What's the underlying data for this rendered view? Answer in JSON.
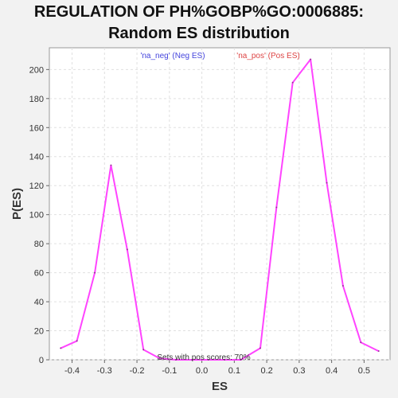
{
  "chart_data": {
    "type": "line",
    "title_line1": "REGULATION OF PH%GOBP%GO:0006885:",
    "title_line2": "Random ES distribution",
    "xlabel": "ES",
    "ylabel": "P(ES)",
    "xlim": [
      -0.47,
      0.58
    ],
    "ylim": [
      0,
      215
    ],
    "x_ticks": [
      -0.4,
      -0.3,
      -0.2,
      -0.1,
      0.0,
      0.1,
      0.2,
      0.3,
      0.4,
      0.5
    ],
    "x_tick_labels": [
      "-0.4",
      "-0.3",
      "-0.2",
      "-0.1",
      "0.0",
      "0.1",
      "0.2",
      "0.3",
      "0.4",
      "0.5"
    ],
    "y_ticks": [
      0,
      20,
      40,
      60,
      80,
      100,
      120,
      140,
      160,
      180,
      200
    ],
    "y_tick_labels": [
      "0",
      "20",
      "40",
      "60",
      "80",
      "100",
      "120",
      "140",
      "160",
      "180",
      "200"
    ],
    "grid": true,
    "series": [
      {
        "color": "#ff44ff",
        "x": [
          -0.435,
          -0.385,
          -0.33,
          -0.28,
          -0.23,
          -0.18,
          -0.13,
          -0.08,
          -0.03,
          0.02,
          0.07,
          0.12,
          0.18,
          0.23,
          0.28,
          0.335,
          0.385,
          0.435,
          0.49,
          0.545
        ],
        "y": [
          8,
          13,
          60,
          134,
          76,
          7,
          1,
          0,
          0,
          0,
          0,
          0,
          8,
          105,
          191,
          207,
          122,
          51,
          12,
          6
        ]
      }
    ],
    "legend": [
      {
        "text": "'na_neg' (Neg ES)",
        "color": "#4444dd"
      },
      {
        "text": "'na_pos' (Pos ES)",
        "color": "#dd4444"
      }
    ],
    "legend_placement": "top-center",
    "annotation": "Sets with pos scores: 70%"
  }
}
